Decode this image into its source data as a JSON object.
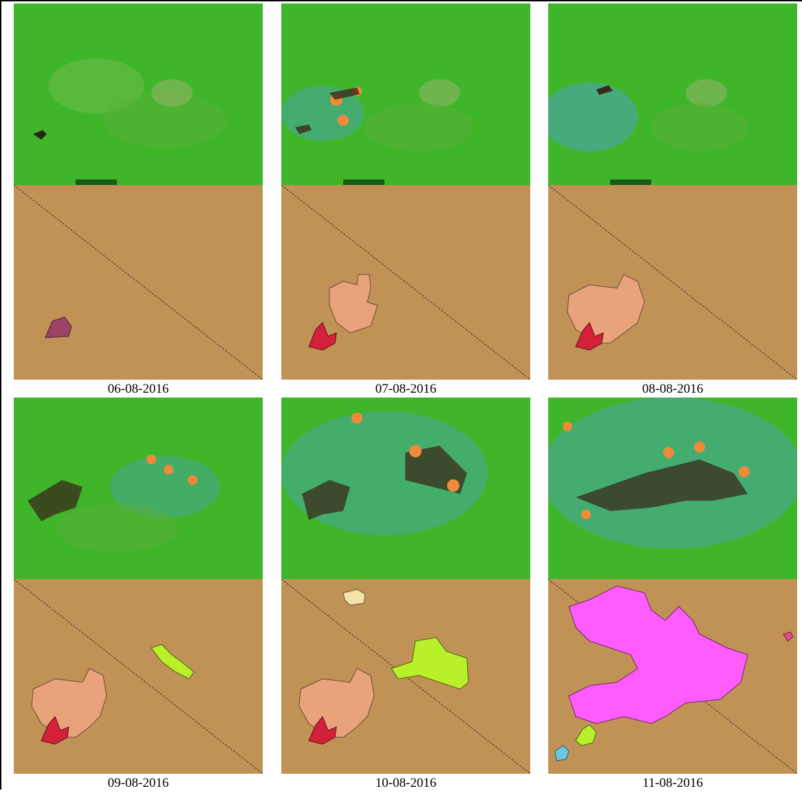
{
  "panels": [
    {
      "date": "06-08-2016"
    },
    {
      "date": "07-08-2016"
    },
    {
      "date": "08-08-2016"
    },
    {
      "date": "09-08-2016"
    },
    {
      "date": "10-08-2016"
    },
    {
      "date": "11-08-2016"
    }
  ],
  "colors": {
    "vegetation": "#3fb52a",
    "smoke": "#4aa6a0",
    "burn_scar": "#3a2a1a",
    "active_fire": "#f08a3a",
    "map_background": "#c09256",
    "burned_area_initial": "#e06a6a",
    "burned_area_main": "#e8a37a",
    "burned_area_dark": "#d4203a",
    "burned_area_green": "#b8f02a",
    "burned_area_magenta": "#ff5cff",
    "burned_area_pale": "#f4e2a8",
    "burned_area_cyan": "#6ac8e0",
    "burned_area_purple": "#9b4466"
  }
}
